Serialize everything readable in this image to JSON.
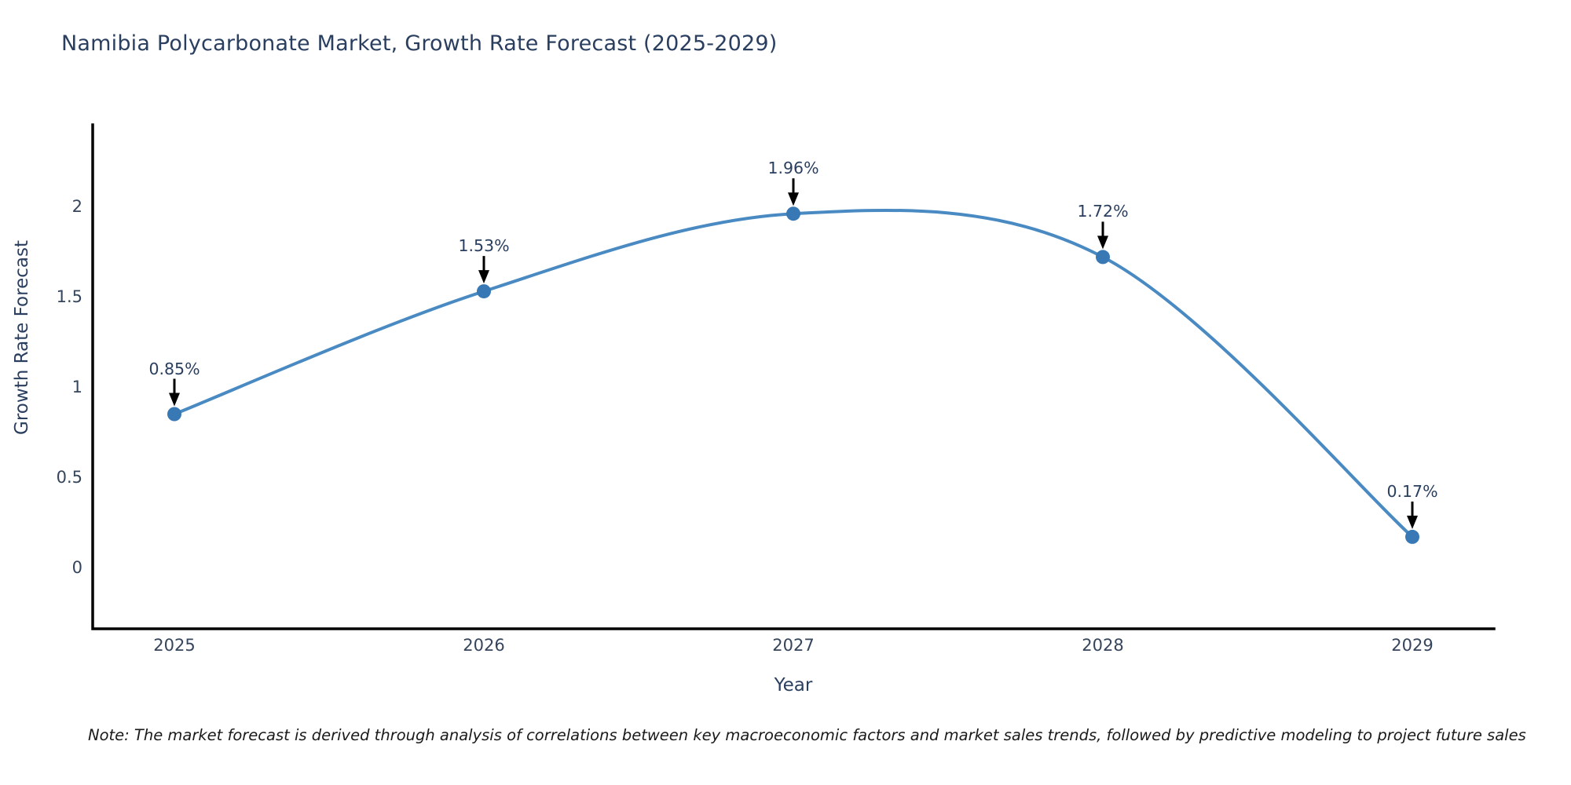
{
  "title": "Namibia Polycarbonate Market, Growth Rate Forecast (2025-2029)",
  "note": "Note: The market forecast is derived through analysis of correlations between key macroeconomic factors and market sales trends, followed by predictive modeling to project future sales",
  "chart_data": {
    "type": "line",
    "title": "Namibia Polycarbonate Market, Growth Rate Forecast (2025-2029)",
    "categories": [
      "2025",
      "2026",
      "2027",
      "2028",
      "2029"
    ],
    "values": [
      0.85,
      1.53,
      1.96,
      1.72,
      0.17
    ],
    "point_labels": [
      "0.85%",
      "1.53%",
      "1.96%",
      "1.72%",
      "0.17%"
    ],
    "xlabel": "Year",
    "ylabel": "Growth Rate Forecast",
    "yticks": [
      0,
      0.5,
      1,
      1.5,
      2
    ],
    "ytick_labels": [
      "0",
      "0.5",
      "1",
      "1.5",
      "2"
    ],
    "ylim": [
      -0.34,
      2.45
    ],
    "grid": false,
    "legend": "none",
    "line_color": "#4a8ac2",
    "marker_color": "#3878b4",
    "axis_color": "#000000",
    "annotation_arrow_color": "#000000",
    "text_color": "#2a3f5f"
  }
}
